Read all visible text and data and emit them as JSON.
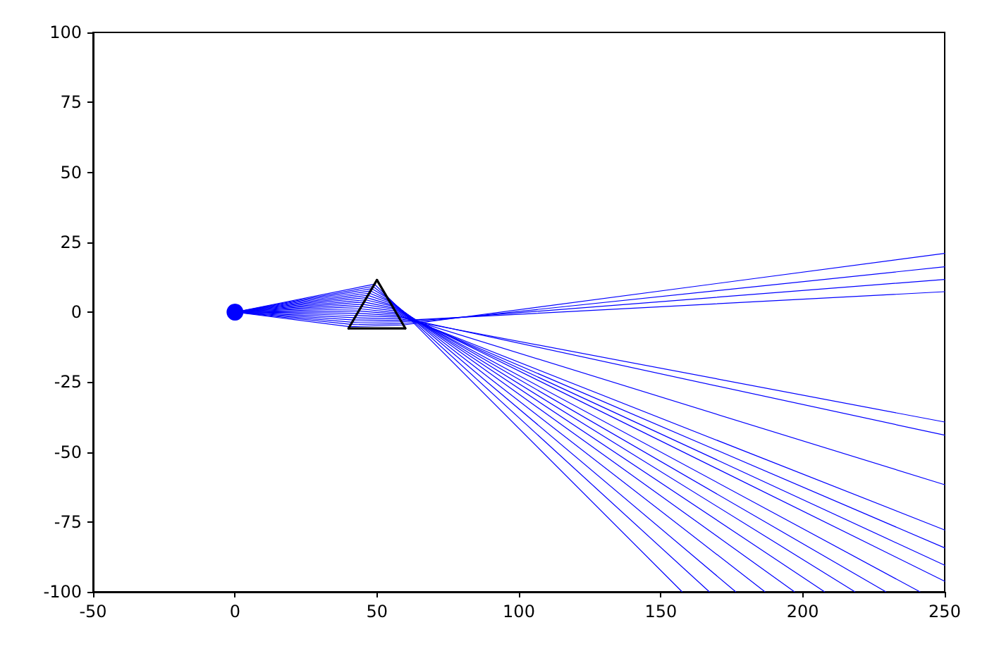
{
  "chart_data": {
    "type": "line",
    "xlim": [
      -50,
      250
    ],
    "ylim": [
      -100,
      100
    ],
    "xticks": [
      -50,
      0,
      50,
      100,
      150,
      200,
      250
    ],
    "yticks": [
      -100,
      -75,
      -50,
      -25,
      0,
      25,
      50,
      75,
      100
    ],
    "grid": false,
    "marker": "none",
    "line_style": "solid",
    "series": [
      {
        "type": "line",
        "color": "#0000ff",
        "x": [
          0,
          49.1,
          53.2,
          157.5
        ],
        "values": [
          0,
          10,
          6.0,
          -100
        ]
      },
      {
        "type": "line",
        "color": "#0000ff",
        "x": [
          0,
          48.6,
          53.5,
          167.1
        ],
        "values": [
          0,
          9.2,
          5.4,
          -100
        ]
      },
      {
        "type": "line",
        "color": "#0000ff",
        "x": [
          0,
          48.2,
          53.9,
          176.4
        ],
        "values": [
          0,
          8.4,
          4.9,
          -100
        ]
      },
      {
        "type": "line",
        "color": "#0000ff",
        "x": [
          0,
          47.7,
          54.2,
          186.7
        ],
        "values": [
          0,
          7.6,
          4.3,
          -100
        ]
      },
      {
        "type": "line",
        "color": "#0000ff",
        "x": [
          0,
          47.3,
          54.5,
          197.1
        ],
        "values": [
          0,
          6.8,
          3.8,
          -100
        ]
      },
      {
        "type": "line",
        "color": "#0000ff",
        "x": [
          0,
          46.8,
          54.8,
          207.7
        ],
        "values": [
          0,
          6.0,
          3.2,
          -100
        ]
      },
      {
        "type": "line",
        "color": "#0000ff",
        "x": [
          0,
          46.3,
          55.1,
          218.4
        ],
        "values": [
          0,
          5.2,
          2.6,
          -100
        ]
      },
      {
        "type": "line",
        "color": "#0000ff",
        "x": [
          0,
          45.9,
          55.5,
          229.3
        ],
        "values": [
          0,
          4.4,
          2.1,
          -100
        ]
      },
      {
        "type": "line",
        "color": "#0000ff",
        "x": [
          0,
          45.4,
          55.8,
          241.3
        ],
        "values": [
          0,
          3.6,
          1.5,
          -100
        ]
      },
      {
        "type": "line",
        "color": "#0000ff",
        "x": [
          0,
          44.9,
          56.1,
          250
        ],
        "values": [
          0,
          2.8,
          1.0,
          -96.2
        ]
      },
      {
        "type": "line",
        "color": "#0000ff",
        "x": [
          0,
          44.5,
          56.4,
          250
        ],
        "values": [
          0,
          2.0,
          0.4,
          -90.5
        ]
      },
      {
        "type": "line",
        "color": "#0000ff",
        "x": [
          0,
          44.0,
          56.7,
          250
        ],
        "values": [
          0,
          1.2,
          -0.2,
          -84.3
        ]
      },
      {
        "type": "line",
        "color": "#0000ff",
        "x": [
          0,
          43.6,
          57.0,
          250
        ],
        "values": [
          0,
          0.4,
          -0.7,
          -77.9
        ]
      },
      {
        "type": "line",
        "color": "#0000ff",
        "x": [
          0,
          43.1,
          57.4,
          250
        ],
        "values": [
          0,
          -0.4,
          -1.3,
          -61.7
        ]
      },
      {
        "type": "line",
        "color": "#0000ff",
        "x": [
          0,
          42.6,
          57.7,
          250
        ],
        "values": [
          0,
          -1.2,
          -1.8,
          -44
        ]
      },
      {
        "type": "line",
        "color": "#0000ff",
        "x": [
          0,
          42.2,
          58.1,
          250
        ],
        "values": [
          0,
          -2.0,
          -2.4,
          -39.3
        ]
      },
      {
        "type": "line",
        "color": "#0000ff",
        "x": [
          0,
          41.7,
          58.4,
          250
        ],
        "values": [
          0,
          -2.8,
          -3.0,
          7.3
        ]
      },
      {
        "type": "line",
        "color": "#0000ff",
        "x": [
          0,
          41.3,
          58.7,
          250
        ],
        "values": [
          0,
          -3.6,
          -3.5,
          11.7
        ]
      },
      {
        "type": "line",
        "color": "#0000ff",
        "x": [
          0,
          40.8,
          59.0,
          250
        ],
        "values": [
          0,
          -4.4,
          -4.1,
          16.2
        ]
      },
      {
        "type": "line",
        "color": "#0000ff",
        "x": [
          0,
          40.3,
          59.3,
          250
        ],
        "values": [
          0,
          -5.2,
          -4.6,
          21
        ]
      },
      {
        "color": "#000000",
        "x": [
          40,
          60
        ],
        "values": [
          -5.8,
          -5.8
        ]
      },
      {
        "color": "#000000",
        "x": [
          50,
          60
        ],
        "values": [
          11.5,
          -5.8
        ]
      },
      {
        "color": "#000000",
        "x": [
          40,
          50
        ],
        "values": [
          -5.8,
          11.5
        ]
      },
      {
        "type": "scatter",
        "color": "#0000ff",
        "marker": "circle",
        "x": [
          0
        ],
        "values": [
          0
        ]
      }
    ]
  }
}
